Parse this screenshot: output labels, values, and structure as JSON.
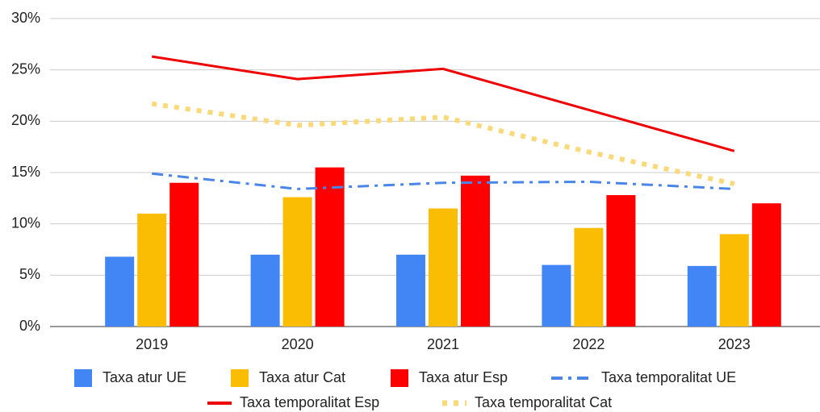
{
  "chart_data": {
    "type": "bar",
    "categories": [
      "2019",
      "2020",
      "2021",
      "2022",
      "2023"
    ],
    "series": [
      {
        "name": "Taxa atur UE",
        "color": "#4285f4",
        "values": [
          6.8,
          7.0,
          7.0,
          6.0,
          5.9
        ]
      },
      {
        "name": "Taxa atur Cat",
        "color": "#fbbc04",
        "values": [
          11.0,
          12.6,
          11.5,
          9.6,
          9.0
        ]
      },
      {
        "name": "Taxa atur Esp",
        "color": "#ff0000",
        "values": [
          14.0,
          15.5,
          14.7,
          12.8,
          12.0
        ]
      },
      {
        "name": "Taxa temporalitat UE",
        "color": "#4a86e8",
        "type": "line",
        "dash": "dashdot",
        "values": [
          14.9,
          13.4,
          14.0,
          14.1,
          13.4
        ]
      },
      {
        "name": "Taxa temporalitat Esp",
        "color": "#ee0000",
        "type": "line",
        "dash": "solid",
        "values": [
          26.3,
          24.1,
          25.1,
          21.1,
          17.1
        ]
      },
      {
        "name": "Taxa temporalitat Cat",
        "color": "#fad97a",
        "type": "line",
        "dash": "dotted",
        "values": [
          21.7,
          19.6,
          20.4,
          17.0,
          13.9
        ]
      }
    ],
    "ylim": [
      0,
      30
    ],
    "yticks": [
      {
        "value": 0,
        "label": "0%"
      },
      {
        "value": 5,
        "label": "5%"
      },
      {
        "value": 10,
        "label": "10%"
      },
      {
        "value": 15,
        "label": "15%"
      },
      {
        "value": 20,
        "label": "20%"
      },
      {
        "value": 25,
        "label": "25%"
      },
      {
        "value": 30,
        "label": "30%"
      }
    ],
    "grid": true,
    "legend": "bottom"
  }
}
